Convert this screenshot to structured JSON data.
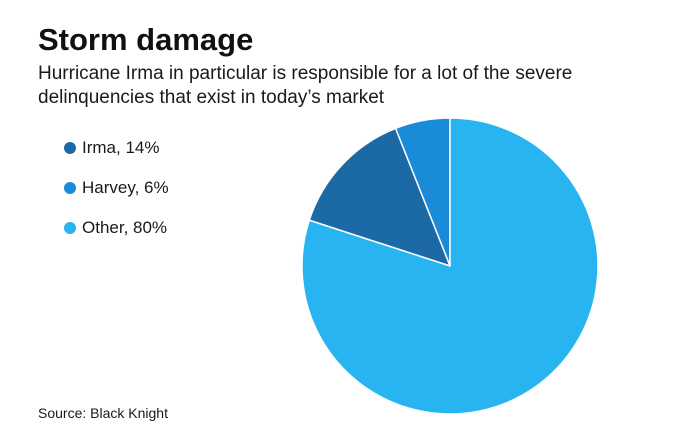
{
  "title": "Storm damage",
  "subtitle": "Hurricane Irma in particular is responsible for a lot of the severe delinquencies that exist in today’s market",
  "source": "Source: Black Knight",
  "chart_data": {
    "type": "pie",
    "title": "Storm damage",
    "subtitle": "Hurricane Irma in particular is responsible for a lot of the severe delinquencies that exist in today’s market",
    "legend_position": "left",
    "slices": [
      {
        "label": "Irma, 14%",
        "value": 14,
        "color": "#1b6aa6"
      },
      {
        "label": "Harvey, 6%",
        "value": 6,
        "color": "#1a8bd8"
      },
      {
        "label": "Other, 80%",
        "value": 80,
        "color": "#27b4f0"
      }
    ],
    "slice_order_from_top": [
      "Harvey, 6%",
      "Irma, 14%",
      "Other, 80%"
    ],
    "direction": "counter-clockwise"
  }
}
